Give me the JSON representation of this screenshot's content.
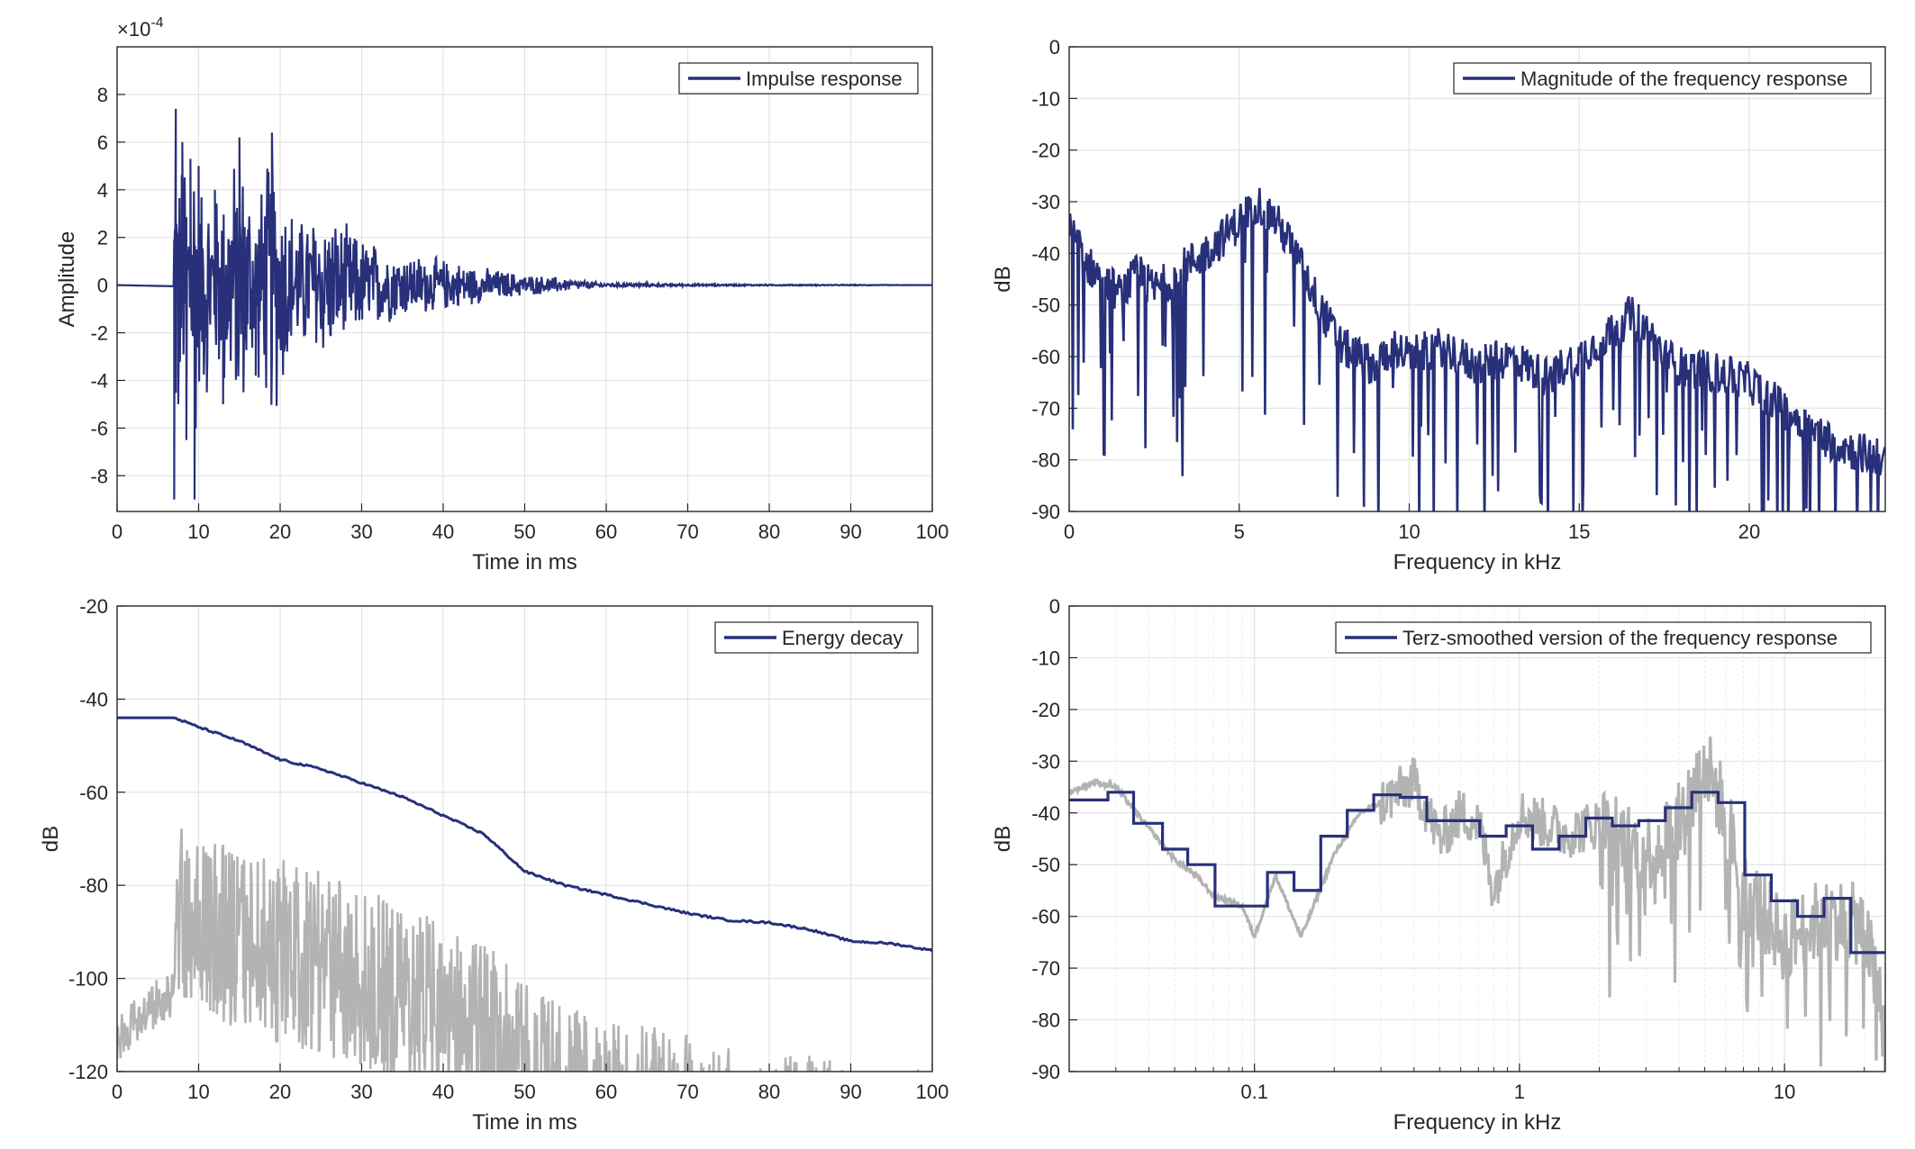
{
  "colors": {
    "series": "#28307a",
    "background_trace": "#b3b3b3",
    "grid": "#e3e3e3",
    "axis": "#262626"
  },
  "chart_data": [
    {
      "type": "line",
      "id": "impulse",
      "xlabel": "Time in ms",
      "ylabel": "Amplitude",
      "exponent": "×10^{-4}",
      "exponent_base": "×10",
      "exponent_power": "-4",
      "xlim": [
        0,
        100
      ],
      "ylim": [
        -9.5,
        10
      ],
      "xticks": [
        0,
        10,
        20,
        30,
        40,
        50,
        60,
        70,
        80,
        90,
        100
      ],
      "yticks": [
        -8,
        -6,
        -4,
        -2,
        0,
        2,
        4,
        6,
        8
      ],
      "legend": "Impulse response",
      "legend_position": "top-right",
      "grid": true,
      "series": [
        {
          "name": "Impulse response",
          "x": [
            0,
            6.5,
            7.0,
            7.2,
            7.5,
            8.0,
            8.5,
            9.0,
            9.5,
            10.0,
            11,
            12,
            13,
            15,
            17,
            19,
            22,
            25,
            30,
            35,
            40,
            45,
            50,
            55,
            60,
            70,
            80,
            90,
            100
          ],
          "y": [
            0,
            -0.1,
            -9.0,
            7.4,
            -5.0,
            6.0,
            -6.5,
            5.3,
            -9.0,
            5.0,
            -4.5,
            4.0,
            -5.0,
            6.2,
            -3.8,
            6.4,
            -3.0,
            3.5,
            -2.2,
            1.5,
            -1.2,
            0.8,
            -0.5,
            0.3,
            0.1,
            0.05,
            0.03,
            0.02,
            0
          ]
        }
      ]
    },
    {
      "type": "line",
      "id": "magnitude",
      "xlabel": "Frequency in kHz",
      "ylabel": "dB",
      "xlim": [
        0,
        24
      ],
      "ylim": [
        -90,
        0
      ],
      "xticks": [
        0,
        5,
        10,
        15,
        20
      ],
      "yticks": [
        0,
        -10,
        -20,
        -30,
        -40,
        -50,
        -60,
        -70,
        -80,
        -90
      ],
      "legend": "Magnitude of the frequency response",
      "legend_position": "top-right",
      "grid": true,
      "series": [
        {
          "name": "Magnitude of the frequency response",
          "x": [
            0,
            0.5,
            1,
            1.5,
            2,
            2.5,
            3,
            3.5,
            4,
            4.5,
            5,
            5.5,
            6,
            6.5,
            7,
            7.5,
            8,
            8.5,
            9,
            9.5,
            10,
            11,
            12,
            13,
            14,
            15,
            16,
            16.5,
            17,
            17.5,
            18,
            19,
            20,
            21,
            22,
            23,
            24
          ],
          "y": [
            -35,
            -42,
            -45,
            -48,
            -44,
            -47,
            -45,
            -42,
            -40,
            -37,
            -34,
            -30,
            -33,
            -38,
            -45,
            -52,
            -58,
            -60,
            -62,
            -58,
            -60,
            -58,
            -62,
            -60,
            -64,
            -60,
            -55,
            -52,
            -55,
            -60,
            -62,
            -63,
            -65,
            -70,
            -75,
            -78,
            -80
          ]
        }
      ]
    },
    {
      "type": "line",
      "id": "energy",
      "xlabel": "Time in ms",
      "ylabel": "dB",
      "xlim": [
        0,
        100
      ],
      "ylim": [
        -120,
        -20
      ],
      "xticks": [
        0,
        10,
        20,
        30,
        40,
        50,
        60,
        70,
        80,
        90,
        100
      ],
      "yticks": [
        -20,
        -40,
        -60,
        -80,
        -100,
        -120
      ],
      "legend": "Energy decay",
      "legend_position": "top-right",
      "grid": true,
      "series": [
        {
          "name": "Energy decay",
          "x": [
            0,
            7,
            10,
            15,
            20,
            25,
            30,
            35,
            40,
            45,
            50,
            55,
            60,
            65,
            70,
            75,
            80,
            85,
            90,
            95,
            100
          ],
          "y": [
            -44,
            -44,
            -46,
            -49,
            -53,
            -55,
            -58,
            -61,
            -65,
            -69,
            -77,
            -80,
            -82,
            -84,
            -86,
            -87.5,
            -88,
            -89.5,
            -92,
            -92.5,
            -94
          ]
        },
        {
          "x": [
            0,
            5,
            7,
            7.5,
            10,
            15,
            20,
            25,
            30,
            35,
            40,
            45,
            50,
            55,
            60,
            65,
            70,
            75,
            78,
            80,
            85,
            90,
            95,
            100
          ],
          "y": [
            -108,
            -100,
            -98,
            -65,
            -70,
            -72,
            -74,
            -77,
            -80,
            -84,
            -88,
            -92,
            -100,
            -106,
            -108,
            -110,
            -112,
            -115,
            -120,
            -118,
            -115,
            -120,
            -120,
            -119
          ]
        }
      ]
    },
    {
      "type": "line",
      "id": "terz",
      "xlabel": "Frequency in kHz",
      "ylabel": "dB",
      "xscale": "log",
      "xlim": [
        0.02,
        24
      ],
      "ylim": [
        -90,
        0
      ],
      "xticks": [
        0.1,
        1,
        10
      ],
      "xticklabels": [
        "0.1",
        "1",
        "10"
      ],
      "yticks": [
        0,
        -10,
        -20,
        -30,
        -40,
        -50,
        -60,
        -70,
        -80,
        -90
      ],
      "legend": "Terz-smoothed version of the frequency response",
      "legend_position": "top-right",
      "grid": true,
      "series": [
        {
          "name": "Terz-smoothed version of the frequency response",
          "step_edges": [
            0.02,
            0.028,
            0.035,
            0.045,
            0.056,
            0.071,
            0.089,
            0.112,
            0.141,
            0.178,
            0.224,
            0.282,
            0.355,
            0.447,
            0.562,
            0.708,
            0.891,
            1.12,
            1.41,
            1.78,
            2.24,
            2.82,
            3.55,
            4.47,
            5.62,
            7.08,
            8.91,
            11.2,
            14.1,
            17.8,
            24
          ],
          "values": [
            -37.5,
            -36,
            -42,
            -47,
            -50,
            -58,
            -58,
            -51.5,
            -55,
            -44.5,
            -39.5,
            -36.5,
            -37,
            -41.5,
            -41.5,
            -44.5,
            -42.5,
            -47,
            -44.5,
            -41,
            -42.5,
            -41.5,
            -39,
            -36,
            -38,
            -52,
            -57,
            -60,
            -56.5,
            -67
          ]
        },
        {
          "x": [
            0.02,
            0.025,
            0.03,
            0.04,
            0.05,
            0.06,
            0.07,
            0.08,
            0.09,
            0.1,
            0.12,
            0.15,
            0.2,
            0.25,
            0.3,
            0.35,
            0.4,
            0.5,
            0.6,
            0.7,
            0.8,
            1,
            1.5,
            2,
            3,
            4,
            5,
            6,
            7,
            8,
            10,
            12,
            15,
            20,
            24
          ],
          "y": [
            -36,
            -34,
            -35,
            -43,
            -49,
            -52,
            -56,
            -57,
            -58,
            -64,
            -52,
            -64,
            -48,
            -40,
            -38,
            -36,
            -34,
            -45,
            -40,
            -42,
            -55,
            -40,
            -44,
            -42,
            -48,
            -42,
            -30,
            -40,
            -55,
            -58,
            -65,
            -62,
            -60,
            -62,
            -82
          ]
        }
      ]
    }
  ]
}
